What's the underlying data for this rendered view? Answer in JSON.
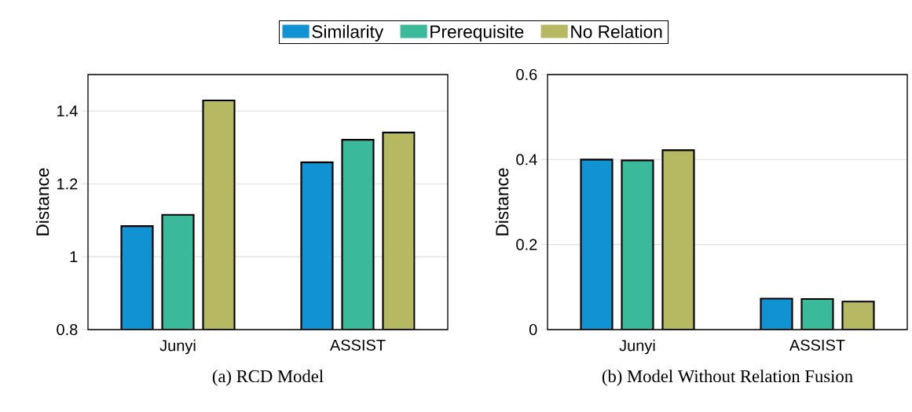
{
  "chart_data": [
    {
      "type": "bar",
      "xlabel": "(a) RCD Model",
      "ylabel": "Distance",
      "categories": [
        "Junyi",
        "ASSIST"
      ],
      "series": [
        {
          "name": "Similarity",
          "color": "#1192d3",
          "values": [
            1.084,
            1.259
          ]
        },
        {
          "name": "Prerequisite",
          "color": "#3bb99b",
          "values": [
            1.115,
            1.321
          ]
        },
        {
          "name": "No Relation",
          "color": "#b7b962",
          "values": [
            1.429,
            1.341
          ]
        }
      ],
      "ylim": [
        0.8,
        1.5
      ],
      "yticks": [
        0.8,
        1,
        1.2,
        1.4
      ],
      "grid": "y",
      "legend": "top"
    },
    {
      "type": "bar",
      "xlabel": "(b) Model Without Relation Fusion",
      "ylabel": "Distance",
      "categories": [
        "Junyi",
        "ASSIST"
      ],
      "series": [
        {
          "color": "#1192d3",
          "values": [
            0.4,
            0.073
          ]
        },
        {
          "color": "#3bb99b",
          "values": [
            0.398,
            0.072
          ]
        },
        {
          "color": "#b7b962",
          "values": [
            0.422,
            0.066
          ]
        }
      ],
      "ylim": [
        0,
        0.6
      ],
      "yticks": [
        0,
        0.2,
        0.4,
        0.6
      ],
      "grid": "y"
    }
  ]
}
